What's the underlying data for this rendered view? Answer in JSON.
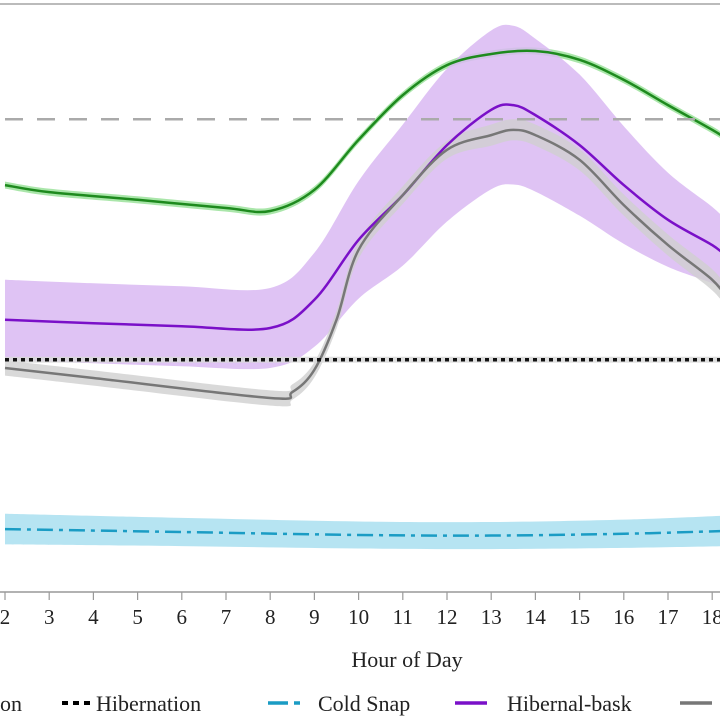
{
  "chart_data": {
    "type": "line",
    "xlabel": "Hour of Day",
    "ylabel": "",
    "x_ticks": [
      "2",
      "3",
      "4",
      "5",
      "6",
      "7",
      "8",
      "9",
      "10",
      "11",
      "12",
      "13",
      "14",
      "15",
      "16",
      "17",
      "18"
    ],
    "xlim": [
      2,
      18.36
    ],
    "ylim": [
      0,
      100
    ],
    "grid": false,
    "legend_position": "bottom",
    "legend": [
      {
        "label": "on",
        "color": "#1e8a1e",
        "style": "solid"
      },
      {
        "label": "Hibernation",
        "color": "#000000",
        "style": "dotted"
      },
      {
        "label": "Cold Snap",
        "color": "#1a9cc4",
        "style": "dashdot"
      },
      {
        "label": "Hibernal-bask",
        "color": "#7a10c8",
        "style": "solid"
      },
      {
        "label": "",
        "color": "#777777",
        "style": "solid"
      }
    ],
    "series": [
      {
        "key": "green",
        "color": "#1e8a1e",
        "band_color": "#9be29b",
        "style": "solid",
        "x": [
          2,
          3,
          5,
          7,
          8,
          9,
          10,
          11,
          12,
          13,
          14,
          15,
          16,
          17,
          18,
          18.36
        ],
        "y": [
          69.2,
          68.0,
          66.7,
          65.3,
          64.8,
          68.4,
          76.9,
          84.5,
          89.6,
          91.5,
          92.0,
          90.5,
          87.1,
          82.8,
          78.6,
          76.9
        ],
        "band": [
          0.6,
          0.6,
          0.6,
          0.6,
          0.6,
          0.6,
          0.6,
          0.6,
          0.6,
          0.6,
          0.6,
          0.6,
          0.6,
          0.6,
          0.6,
          0.6
        ]
      },
      {
        "key": "purple",
        "color": "#7a10c8",
        "band_color": "#d9b8f2",
        "style": "solid",
        "x": [
          2,
          4,
          6,
          8,
          9,
          10,
          11,
          12,
          13,
          13.5,
          14,
          15,
          16,
          17,
          18,
          18.36
        ],
        "y": [
          46.3,
          45.7,
          45.2,
          44.9,
          49.7,
          59.9,
          67.5,
          76.0,
          82.0,
          82.8,
          81.1,
          76.0,
          69.2,
          63.3,
          59.0,
          56.8
        ],
        "band": [
          6.8,
          6.8,
          6.8,
          6.8,
          8,
          10,
          12,
          13,
          13.5,
          13.5,
          13,
          12,
          10,
          8,
          6.5,
          6
        ]
      },
      {
        "key": "gray",
        "color": "#777777",
        "band_color": "#cfcfcf",
        "style": "solid",
        "x": [
          2,
          4,
          8,
          8.5,
          9,
          9.5,
          10,
          11,
          12,
          13,
          13.5,
          14,
          15,
          16,
          17,
          18,
          18.36
        ],
        "y": [
          38.1,
          36.4,
          33.0,
          34.0,
          37.8,
          46.3,
          58.2,
          67.5,
          75.2,
          77.7,
          78.6,
          77.7,
          73.5,
          65.8,
          59.0,
          53.1,
          49.7
        ],
        "band": [
          1.3,
          1.3,
          1.3,
          1.3,
          1.3,
          1.5,
          1.5,
          1.5,
          1.5,
          1.8,
          1.8,
          1.8,
          1.8,
          1.8,
          1.8,
          1.8,
          1.8
        ]
      },
      {
        "key": "hibernation",
        "color": "#111111",
        "band_color": "#d8d8d8",
        "style": "dotted",
        "x": [
          2,
          18.36
        ],
        "y": [
          39.5,
          39.5
        ],
        "band": [
          0.5,
          0.5
        ]
      },
      {
        "key": "cold-snap",
        "color": "#1a9cc4",
        "band_color": "#a9dff0",
        "style": "dashdot",
        "x": [
          2,
          6,
          10,
          13,
          16,
          18.36
        ],
        "y": [
          10.7,
          10.2,
          9.7,
          9.6,
          9.9,
          10.4
        ],
        "band": [
          2.6,
          2.4,
          2.3,
          2.3,
          2.4,
          2.6
        ]
      },
      {
        "key": "reference",
        "color": "#aaaaaa",
        "style": "dashed",
        "x": [
          2,
          18.36
        ],
        "y": [
          80.4,
          80.4
        ]
      }
    ]
  }
}
